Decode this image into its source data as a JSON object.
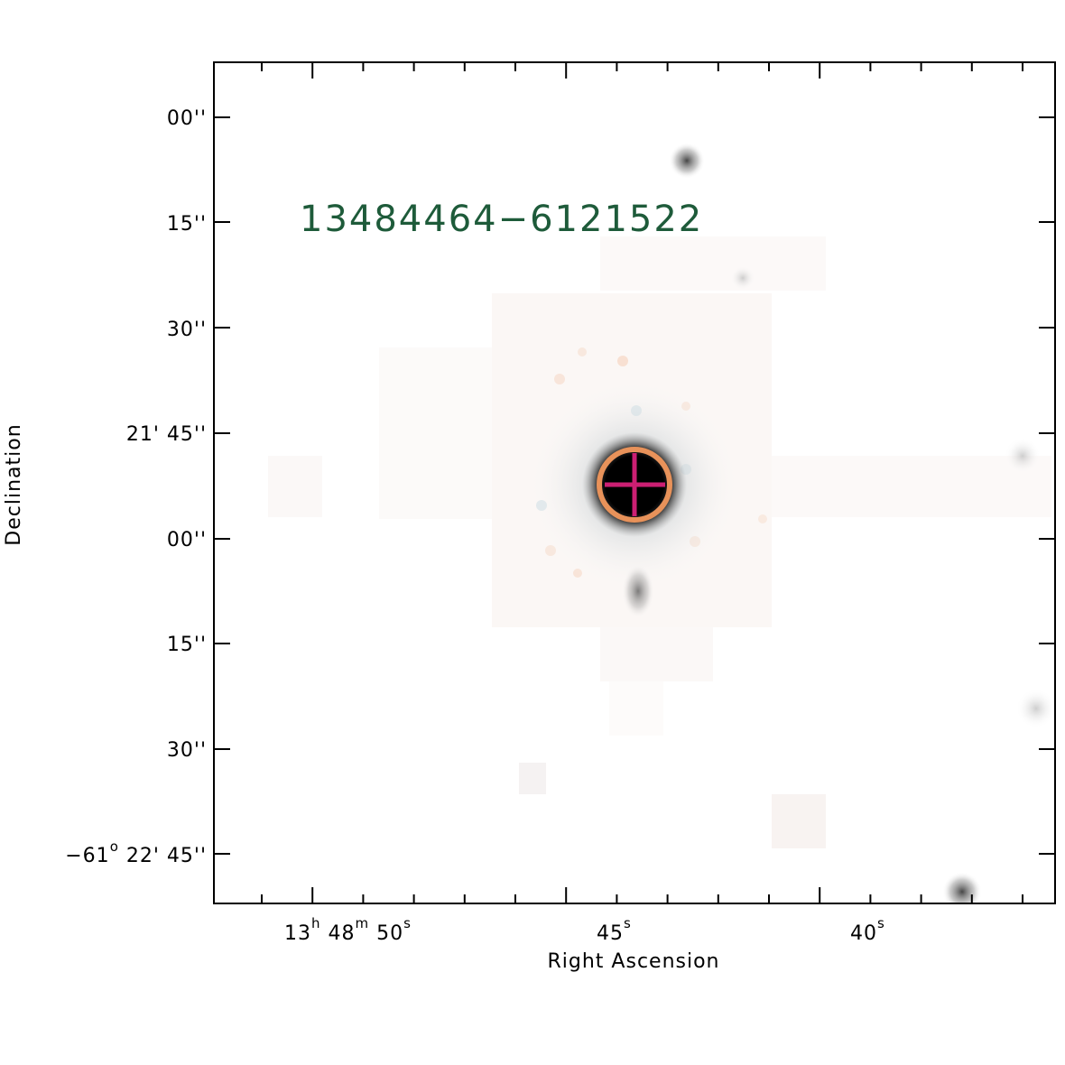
{
  "image": {
    "source_label": "13484464−6121522",
    "source_label_color": "#1e5b3a",
    "marker_circle_color": "#e8925a",
    "marker_cross_color": "#cc1f73",
    "background_color": "#ffffff"
  },
  "axes": {
    "x_title": "Right Ascension",
    "y_title": "Declination",
    "x_ticks": [
      {
        "pre": "13",
        "sup1": "h",
        "mid": " 48",
        "sup2": "m",
        "post": " 50",
        "sup3": "s"
      },
      {
        "pre": "45",
        "sup1": "s"
      },
      {
        "pre": "40",
        "sup1": "s"
      }
    ],
    "y_ticks": [
      {
        "text": "00''"
      },
      {
        "text": "15''"
      },
      {
        "text": "30''"
      },
      {
        "text": "21' 45''"
      },
      {
        "text": "00''"
      },
      {
        "text": "15''"
      },
      {
        "text": "30''"
      },
      {
        "text": "−61",
        "sup": "o",
        "rest": " 22' 45''"
      }
    ]
  }
}
